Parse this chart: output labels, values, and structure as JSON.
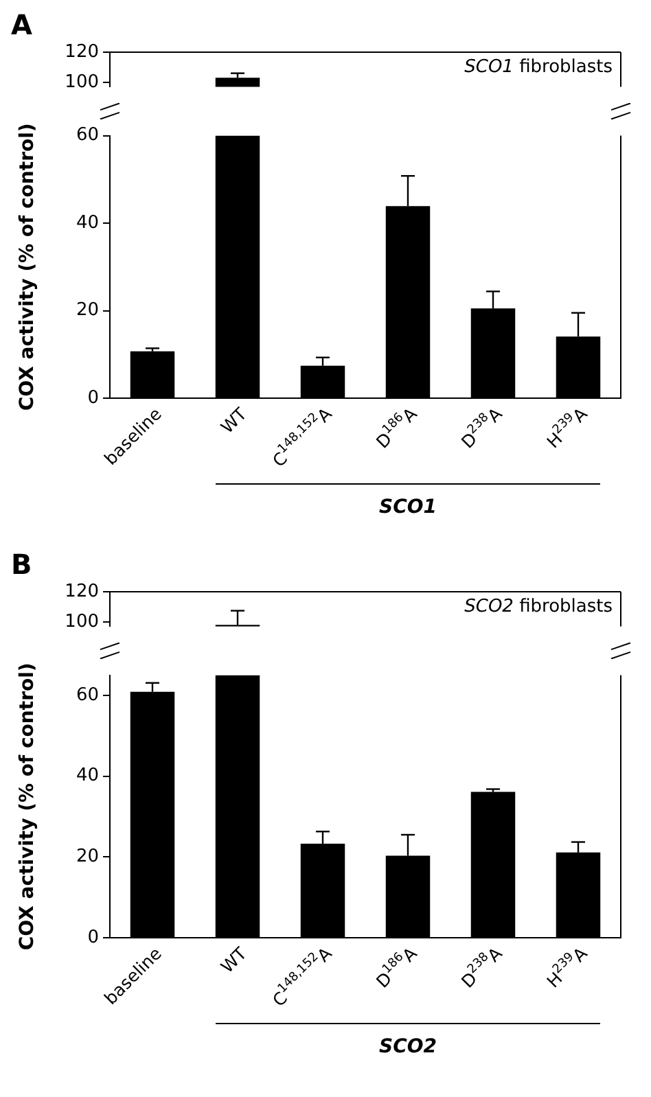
{
  "chart_data": [
    {
      "type": "bar",
      "title": "A",
      "categories": [
        null,
        null,
        null,
        null,
        null,
        null
      ],
      "values": [
        null,
        103,
        null,
        null,
        null,
        null
      ],
      "errors": [
        null,
        [
          103,
          106
        ],
        null,
        null,
        null,
        null
      ],
      "color": "#000000",
      "ylim": [
        97,
        120
      ],
      "yticks": [
        100,
        120
      ],
      "grid": false,
      "tick_labels": "y",
      "annotations": [
        "SCO1 fibroblasts"
      ]
    },
    {
      "type": "bar",
      "categories": [
        "baseline",
        "WT",
        "C$^{148,152}$A",
        "D$^{186}$A",
        "D$^{238}$A",
        "H$^{239}$A"
      ],
      "values": [
        10.7,
        60,
        7.4,
        43.9,
        20.5,
        14.1
      ],
      "errors": [
        [
          10.7,
          11.4
        ],
        null,
        [
          7.4,
          9.3
        ],
        [
          43.9,
          50.8
        ],
        [
          20.5,
          24.4
        ],
        [
          14.1,
          19.5
        ]
      ],
      "color": "#000000",
      "ylim": [
        0,
        60
      ],
      "yticks": [
        0,
        20,
        40,
        60
      ],
      "grid": false,
      "ylabel": "COX activity (% of control)",
      "annotations": [
        "SCO1"
      ]
    },
    {
      "type": "bar",
      "title": "B",
      "categories": [
        null,
        null,
        null,
        null,
        null,
        null
      ],
      "values": [
        null,
        98,
        null,
        null,
        null,
        null
      ],
      "errors": [
        null,
        [
          98,
          107.4
        ],
        null,
        null,
        null,
        null
      ],
      "color": "#000000",
      "ylim": [
        97,
        120
      ],
      "yticks": [
        100,
        120
      ],
      "grid": false,
      "tick_labels": "y",
      "annotations": [
        "SCO2 fibroblasts"
      ]
    },
    {
      "type": "bar",
      "categories": [
        "baseline",
        "WT",
        "C$^{148,152}$A",
        "D$^{186}$A",
        "D$^{238}$A",
        "H$^{239}$A"
      ],
      "values": [
        60.9,
        65,
        23.3,
        20.3,
        36.1,
        21.1
      ],
      "errors": [
        [
          60.9,
          63.1
        ],
        null,
        [
          23.3,
          26.3
        ],
        [
          20.3,
          25.5
        ],
        [
          36.1,
          36.8
        ],
        [
          21.1,
          23.7
        ]
      ],
      "color": "#000000",
      "ylim": [
        0,
        65
      ],
      "yticks": [
        0,
        20,
        40,
        60
      ],
      "grid": false,
      "ylabel": "COX activity (% of control)",
      "annotations": [
        "SCO2"
      ]
    }
  ]
}
